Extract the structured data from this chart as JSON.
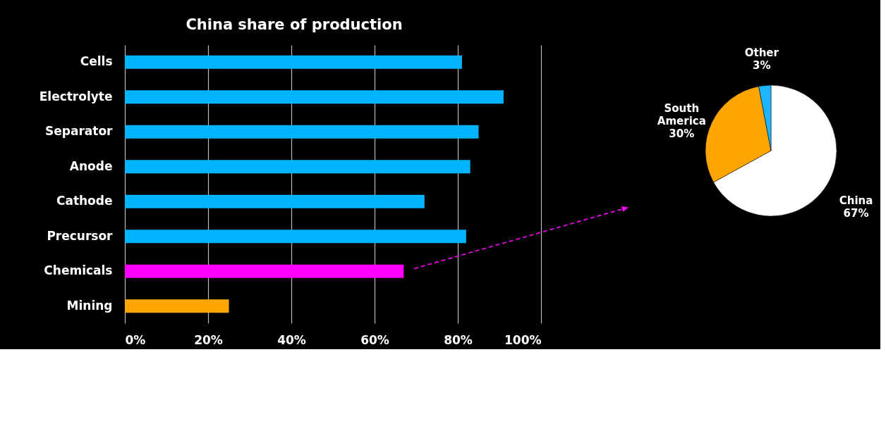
{
  "chart_data": [
    {
      "type": "bar",
      "title": "China share of production",
      "orientation": "horizontal",
      "categories": [
        "Cells",
        "Electrolyte",
        "Separator",
        "Anode",
        "Cathode",
        "Precursor",
        "Chemicals",
        "Mining"
      ],
      "values": [
        81,
        91,
        85,
        83,
        72,
        82,
        67,
        25
      ],
      "colors": [
        "#00b4ff",
        "#00b4ff",
        "#00b4ff",
        "#00b4ff",
        "#00b4ff",
        "#00b4ff",
        "#ff00ff",
        "#ffa500"
      ],
      "xlim": [
        0,
        100
      ],
      "xticks": [
        {
          "value": 0,
          "label": "0%"
        },
        {
          "value": 20,
          "label": "20%"
        },
        {
          "value": 40,
          "label": "40%"
        },
        {
          "value": 60,
          "label": "60%"
        },
        {
          "value": 80,
          "label": "80%"
        },
        {
          "value": 100,
          "label": "100%"
        }
      ],
      "grid": "x",
      "legend": false
    },
    {
      "type": "pie",
      "categories": [
        "China",
        "South America",
        "Other"
      ],
      "values": [
        67,
        30,
        3
      ],
      "colors": [
        "#ffffff",
        "#ffa500",
        "#1eb4ff"
      ],
      "value_labels": [
        "67%",
        "30%",
        "3%"
      ],
      "legend": false
    }
  ]
}
